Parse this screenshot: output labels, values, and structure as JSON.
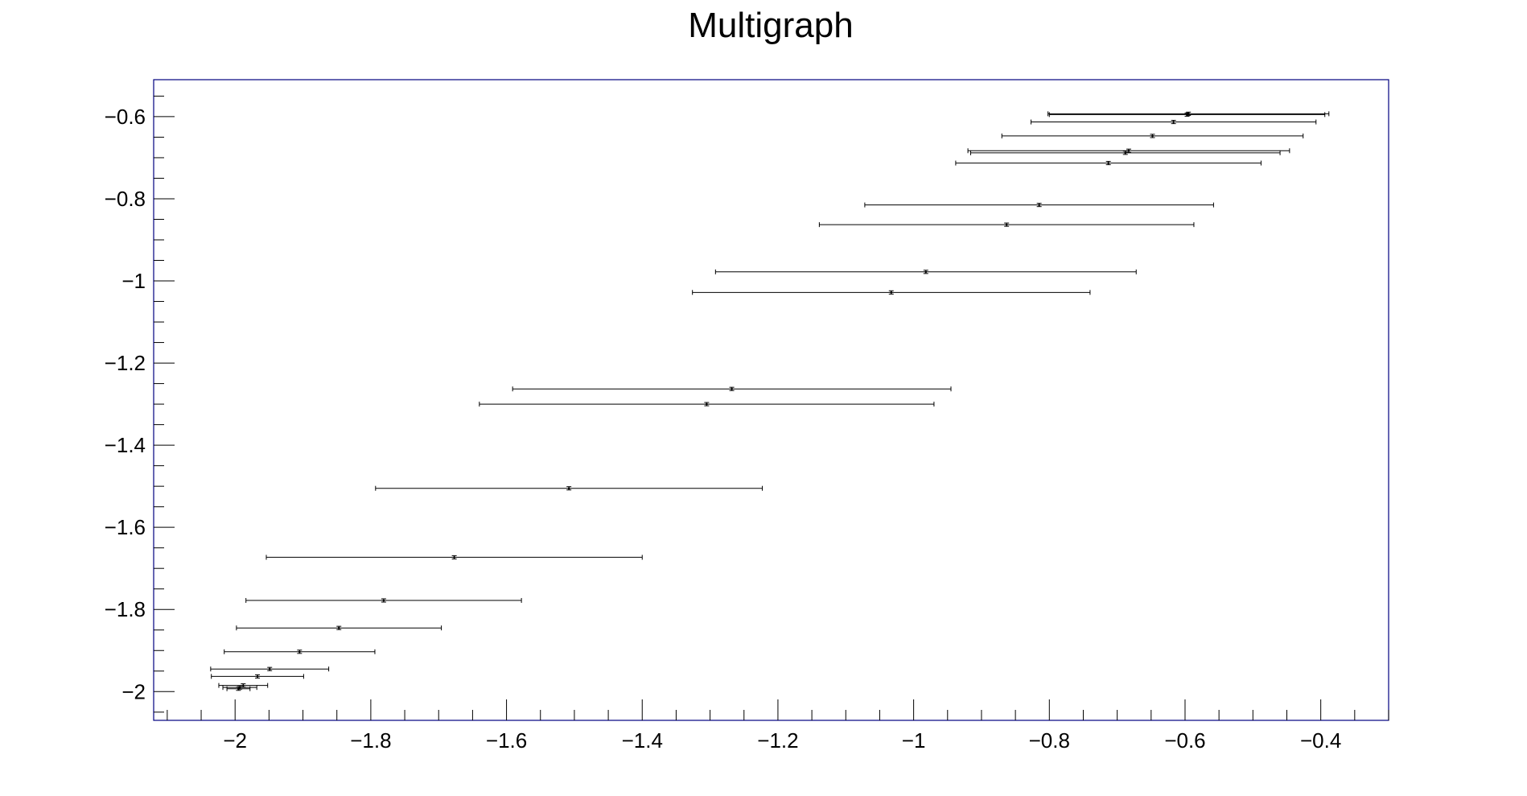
{
  "chart_data": {
    "type": "scatter",
    "title": "Multigraph",
    "xlabel": "",
    "ylabel": "",
    "xlim": [
      -2.12,
      -0.3
    ],
    "ylim": [
      -2.07,
      -0.51
    ],
    "x_ticks": [
      -2,
      -1.8,
      -1.6,
      -1.4,
      -1.2,
      -1,
      -0.8,
      -0.6,
      -0.4
    ],
    "x_tick_labels": [
      "−2",
      "−1.8",
      "−1.6",
      "−1.4",
      "−1.2",
      "−1",
      "−0.8",
      "−0.6",
      "−0.4"
    ],
    "y_ticks": [
      -0.6,
      -0.8,
      -1,
      -1.2,
      -1.4,
      -1.6,
      -1.8,
      -2
    ],
    "y_tick_labels": [
      "−0.6",
      "−0.8",
      "−1",
      "−1.2",
      "−1.4",
      "−1.6",
      "−1.8",
      "−2"
    ],
    "grid": false,
    "frame_color": "#000080",
    "marker_color": "#000000",
    "points": [
      {
        "x": -0.595,
        "y": -0.593,
        "xerr": 0.207,
        "yerr": 0.004
      },
      {
        "x": -0.597,
        "y": -0.595,
        "xerr": 0.203,
        "yerr": 0.004
      },
      {
        "x": -0.617,
        "y": -0.613,
        "xerr": 0.21,
        "yerr": 0.004
      },
      {
        "x": -0.648,
        "y": -0.647,
        "xerr": 0.222,
        "yerr": 0.004
      },
      {
        "x": -0.683,
        "y": -0.683,
        "xerr": 0.237,
        "yerr": 0.004
      },
      {
        "x": -0.688,
        "y": -0.688,
        "xerr": 0.228,
        "yerr": 0.004
      },
      {
        "x": -0.713,
        "y": -0.713,
        "xerr": 0.225,
        "yerr": 0.004
      },
      {
        "x": -0.815,
        "y": -0.815,
        "xerr": 0.257,
        "yerr": 0.004
      },
      {
        "x": -0.863,
        "y": -0.863,
        "xerr": 0.276,
        "yerr": 0.004
      },
      {
        "x": -0.982,
        "y": -0.978,
        "xerr": 0.31,
        "yerr": 0.004
      },
      {
        "x": -1.033,
        "y": -1.028,
        "xerr": 0.293,
        "yerr": 0.004
      },
      {
        "x": -1.268,
        "y": -1.263,
        "xerr": 0.323,
        "yerr": 0.004
      },
      {
        "x": -1.305,
        "y": -1.3,
        "xerr": 0.335,
        "yerr": 0.004
      },
      {
        "x": -1.508,
        "y": -1.505,
        "xerr": 0.285,
        "yerr": 0.004
      },
      {
        "x": -1.677,
        "y": -1.673,
        "xerr": 0.277,
        "yerr": 0.004
      },
      {
        "x": -1.781,
        "y": -1.778,
        "xerr": 0.203,
        "yerr": 0.004
      },
      {
        "x": -1.847,
        "y": -1.845,
        "xerr": 0.151,
        "yerr": 0.004
      },
      {
        "x": -1.905,
        "y": -1.903,
        "xerr": 0.111,
        "yerr": 0.004
      },
      {
        "x": -1.949,
        "y": -1.945,
        "xerr": 0.087,
        "yerr": 0.004
      },
      {
        "x": -1.967,
        "y": -1.963,
        "xerr": 0.068,
        "yerr": 0.004
      },
      {
        "x": -1.988,
        "y": -1.985,
        "xerr": 0.036,
        "yerr": 0.004
      },
      {
        "x": -1.993,
        "y": -1.99,
        "xerr": 0.025,
        "yerr": 0.004
      },
      {
        "x": -1.995,
        "y": -1.993,
        "xerr": 0.017,
        "yerr": 0.004
      }
    ]
  }
}
